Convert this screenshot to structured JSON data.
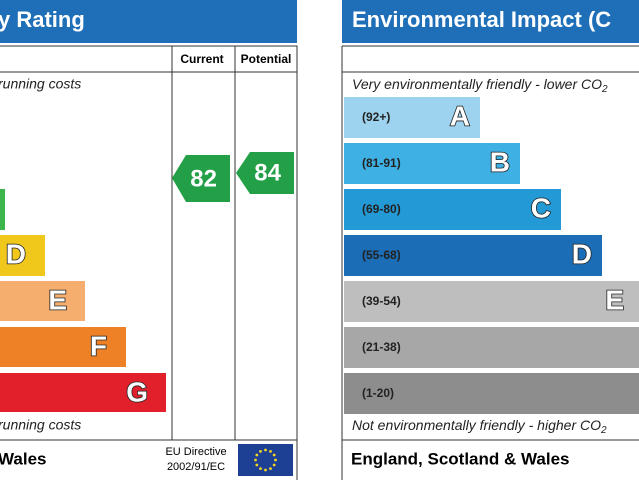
{
  "energy_panel": {
    "title": "y Rating",
    "columns": [
      "Current",
      "Potential"
    ],
    "top_note": "running costs",
    "bands": [
      "D",
      "E",
      "F",
      "G"
    ],
    "bottom_note": "running costs",
    "footer": "Wales",
    "directive": [
      "EU Directive",
      "2002/91/EC"
    ],
    "current": "82",
    "potential": "84"
  },
  "environment_panel": {
    "title": "Environmental Impact (C",
    "top_note": "Very environmentally friendly - lower CO",
    "top_sub": "2",
    "bands": [
      {
        "range": "(92+)",
        "letter": "A"
      },
      {
        "range": "(81-91)",
        "letter": "B"
      },
      {
        "range": "(69-80)",
        "letter": "C"
      },
      {
        "range": "(55-68)",
        "letter": "D"
      },
      {
        "range": "(39-54)",
        "letter": "E"
      },
      {
        "range": "(21-38)",
        "letter": ""
      },
      {
        "range": "(1-20)",
        "letter": ""
      }
    ],
    "bottom_note": "Not environmentally friendly - higher CO",
    "bottom_sub": "2",
    "footer": "England, Scotland & Wales"
  }
}
